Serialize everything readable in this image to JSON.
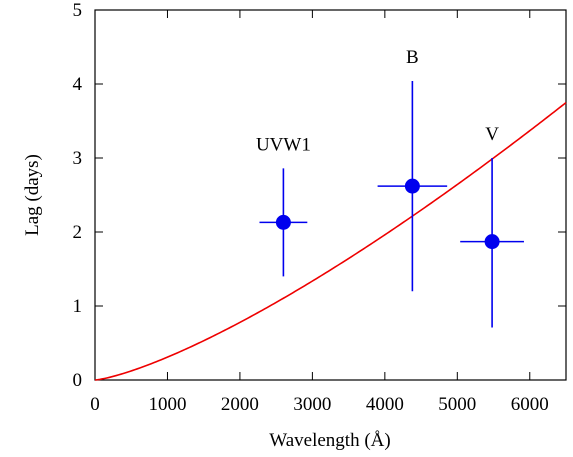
{
  "chart_data": {
    "type": "scatter",
    "xlabel": "Wavelength (Å)",
    "ylabel": "Lag (days)",
    "xlim": [
      0,
      6500
    ],
    "ylim": [
      0,
      5
    ],
    "xticks": [
      0,
      1000,
      2000,
      3000,
      4000,
      5000,
      6000
    ],
    "yticks": [
      0,
      1,
      2,
      3,
      4,
      5
    ],
    "grid": false,
    "colors": {
      "points": "#0000ee",
      "model": "#ee0000",
      "axes": "#000000"
    },
    "points": [
      {
        "label": "UVW1",
        "x": 2600,
        "y": 2.13,
        "xerr": 330,
        "yerr_low": 0.73,
        "yerr_high": 0.73
      },
      {
        "label": "B",
        "x": 4380,
        "y": 2.62,
        "xerr": 480,
        "yerr_low": 1.42,
        "yerr_high": 1.42
      },
      {
        "label": "V",
        "x": 5480,
        "y": 1.87,
        "xerr": 440,
        "yerr_low": 1.16,
        "yerr_high": 1.13
      }
    ],
    "model_curve": {
      "form": "lag = k * (lambda/1000)^(4/3)",
      "k": 0.309
    }
  }
}
